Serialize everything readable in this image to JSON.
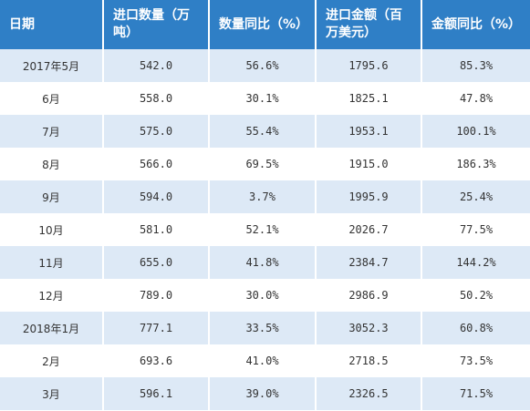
{
  "table": {
    "headers": [
      "日期",
      "进口数量（万吨）",
      "数量同比（%）",
      "进口金额（百万美元）",
      "金额同比（%）"
    ],
    "rows": [
      [
        "2017年5月",
        "542.0",
        "56.6%",
        "1795.6",
        "85.3%"
      ],
      [
        "6月",
        "558.0",
        "30.1%",
        "1825.1",
        "47.8%"
      ],
      [
        "7月",
        "575.0",
        "55.4%",
        "1953.1",
        "100.1%"
      ],
      [
        "8月",
        "566.0",
        "69.5%",
        "1915.0",
        "186.3%"
      ],
      [
        "9月",
        "594.0",
        "3.7%",
        "1995.9",
        "25.4%"
      ],
      [
        "10月",
        "581.0",
        "52.1%",
        "2026.7",
        "77.5%"
      ],
      [
        "11月",
        "655.0",
        "41.8%",
        "2384.7",
        "144.2%"
      ],
      [
        "12月",
        "789.0",
        "30.0%",
        "2986.9",
        "50.2%"
      ],
      [
        "2018年1月",
        "777.1",
        "33.5%",
        "3052.3",
        "60.8%"
      ],
      [
        "2月",
        "693.6",
        "41.0%",
        "2718.5",
        "73.5%"
      ],
      [
        "3月",
        "596.1",
        "39.0%",
        "2326.5",
        "71.5%"
      ]
    ]
  },
  "colors": {
    "header_bg": "#2f7fc6",
    "stripe_bg": "#dde9f6"
  }
}
